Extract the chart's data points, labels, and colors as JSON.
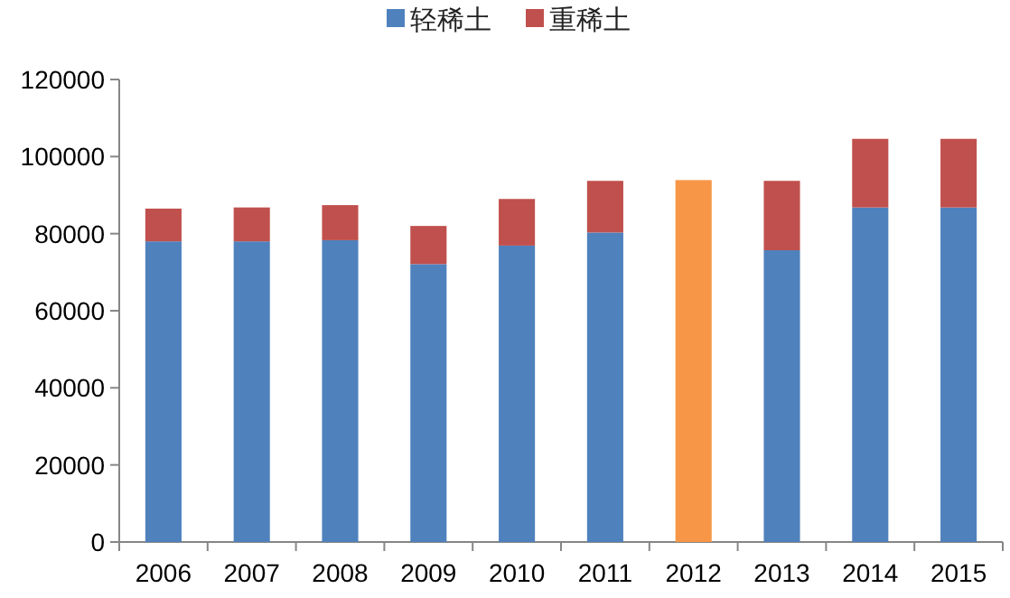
{
  "chart_data": {
    "type": "bar",
    "stacked": true,
    "legend": "top",
    "categories": [
      "2006",
      "2007",
      "2008",
      "2009",
      "2010",
      "2011",
      "2012",
      "2013",
      "2014",
      "2015"
    ],
    "series": [
      {
        "name": "轻稀土",
        "color": "#4f81bd",
        "colors": [
          "#4f81bd",
          "#4f81bd",
          "#4f81bd",
          "#4f81bd",
          "#4f81bd",
          "#4f81bd",
          "#f79646",
          "#4f81bd",
          "#4f81bd",
          "#4f81bd"
        ],
        "values": [
          78000,
          78000,
          78300,
          72100,
          76900,
          80300,
          93900,
          75700,
          86800,
          86800
        ]
      },
      {
        "name": "重稀土",
        "color": "#c0504d",
        "values": [
          8500,
          8800,
          9100,
          9900,
          12100,
          13400,
          null,
          18000,
          17800,
          17800
        ]
      }
    ],
    "ylim": [
      0,
      120000
    ],
    "yticks": [
      0,
      20000,
      40000,
      60000,
      80000,
      100000,
      120000
    ]
  }
}
